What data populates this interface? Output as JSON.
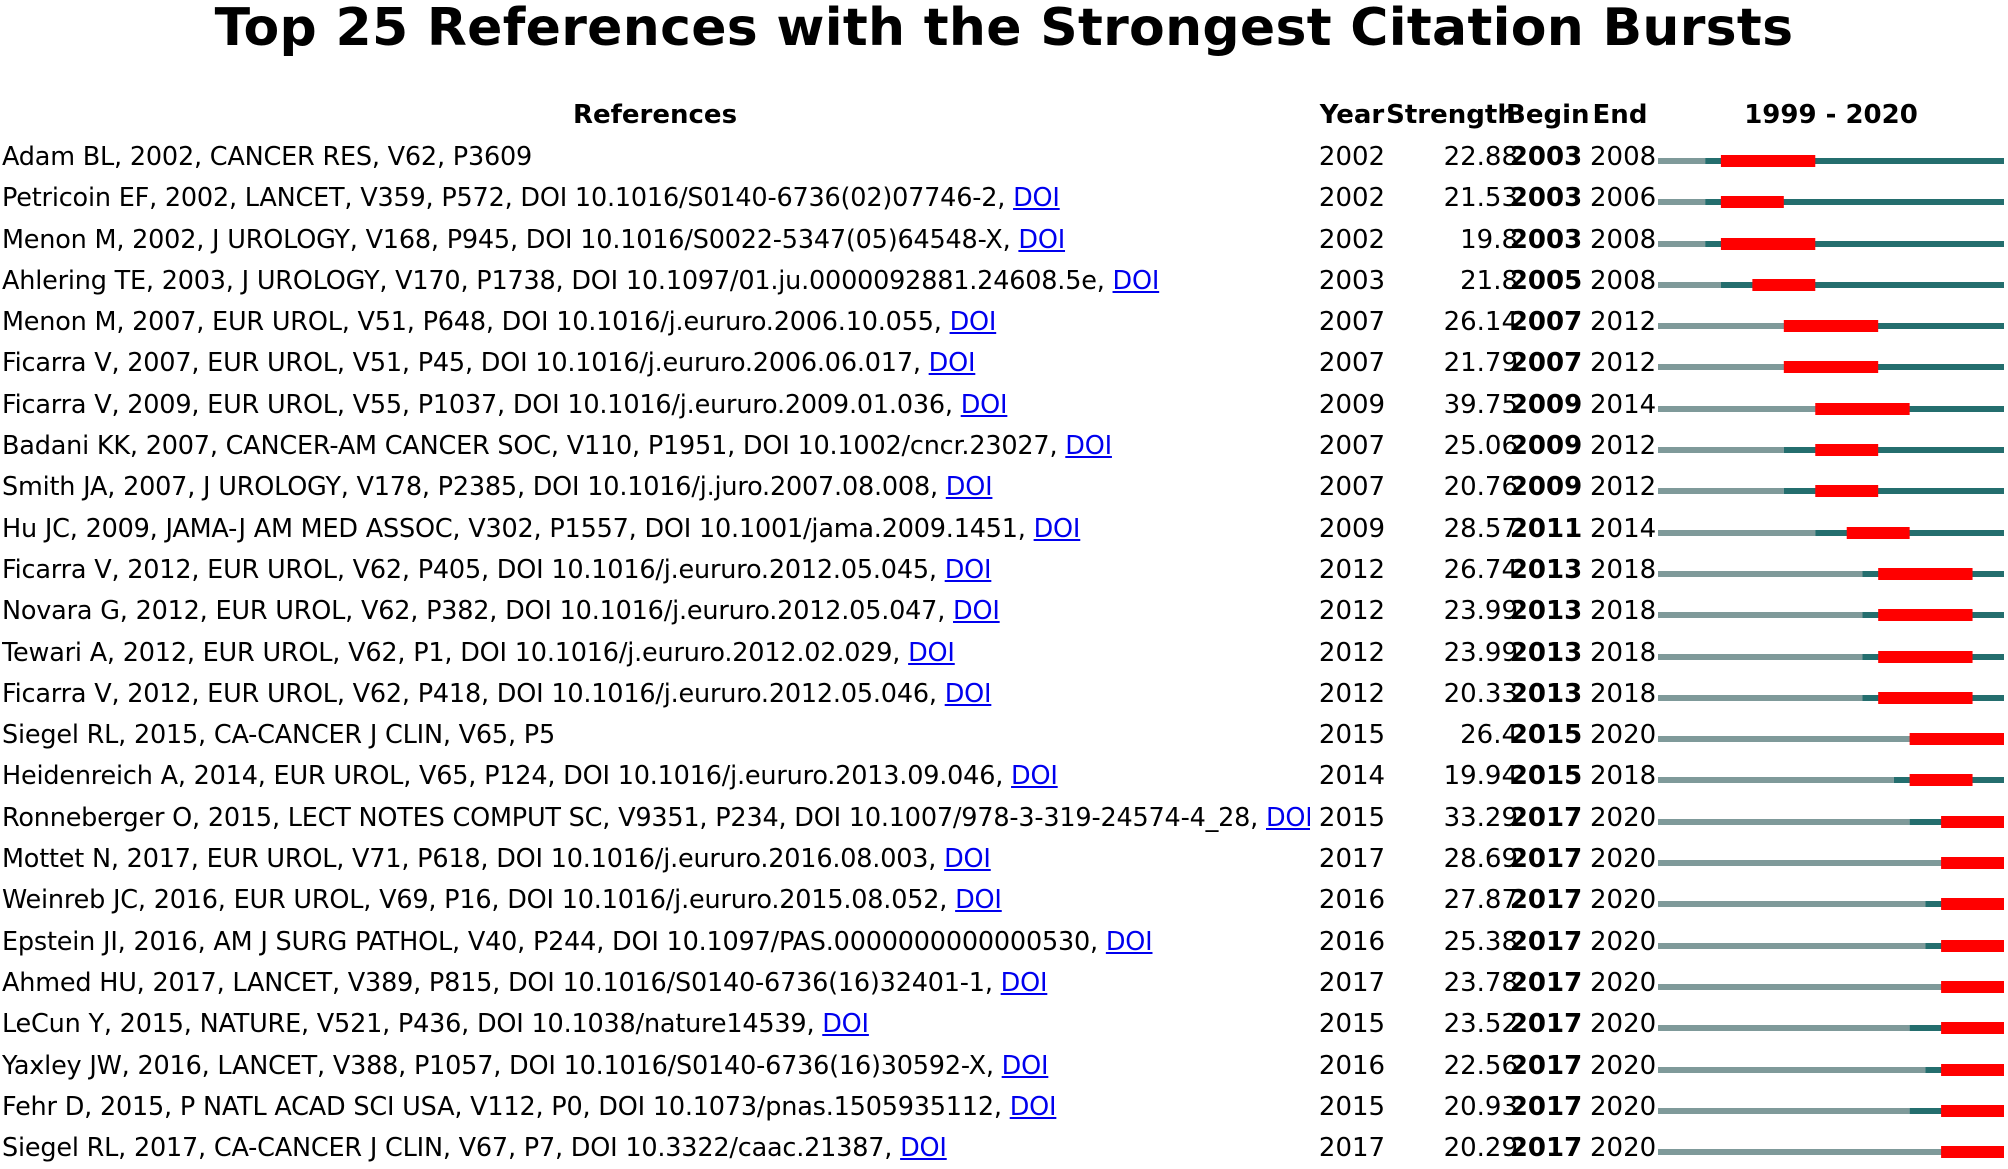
{
  "title": "Top 25 References with the Strongest Citation Bursts",
  "headers": {
    "references": "References",
    "year": "Year",
    "strength": "Strength",
    "begin": "Begin",
    "end": "End",
    "range": "1999 - 2020"
  },
  "doi_link_label": "DOI",
  "colors": {
    "pre_publication": "#7f9a9a",
    "active": "#246e6e",
    "burst": "#ff0000"
  },
  "chart_data": {
    "type": "table",
    "title": "Top 25 References with the Strongest Citation Bursts",
    "timeline_start": 1999,
    "timeline_end": 2020,
    "columns": [
      "References",
      "Year",
      "Strength",
      "Begin",
      "End",
      "1999 - 2020"
    ],
    "rows": [
      {
        "reference": "Adam BL, 2002, CANCER RES, V62, P3609",
        "doi": false,
        "year": "2002",
        "strength": "22.88",
        "begin": "2003",
        "end": "2008"
      },
      {
        "reference": "Petricoin EF, 2002, LANCET, V359, P572, DOI 10.1016/S0140-6736(02)07746-2,",
        "doi": true,
        "year": "2002",
        "strength": "21.53",
        "begin": "2003",
        "end": "2006"
      },
      {
        "reference": "Menon M, 2002, J UROLOGY, V168, P945, DOI 10.1016/S0022-5347(05)64548-X,",
        "doi": true,
        "year": "2002",
        "strength": "19.8",
        "begin": "2003",
        "end": "2008"
      },
      {
        "reference": "Ahlering TE, 2003, J UROLOGY, V170, P1738, DOI 10.1097/01.ju.0000092881.24608.5e,",
        "doi": true,
        "year": "2003",
        "strength": "21.8",
        "begin": "2005",
        "end": "2008"
      },
      {
        "reference": "Menon M, 2007, EUR UROL, V51, P648, DOI 10.1016/j.eururo.2006.10.055,",
        "doi": true,
        "year": "2007",
        "strength": "26.14",
        "begin": "2007",
        "end": "2012"
      },
      {
        "reference": "Ficarra V, 2007, EUR UROL, V51, P45, DOI 10.1016/j.eururo.2006.06.017,",
        "doi": true,
        "year": "2007",
        "strength": "21.79",
        "begin": "2007",
        "end": "2012"
      },
      {
        "reference": "Ficarra V, 2009, EUR UROL, V55, P1037, DOI 10.1016/j.eururo.2009.01.036,",
        "doi": true,
        "year": "2009",
        "strength": "39.75",
        "begin": "2009",
        "end": "2014"
      },
      {
        "reference": "Badani KK, 2007, CANCER-AM CANCER SOC, V110, P1951, DOI 10.1002/cncr.23027,",
        "doi": true,
        "year": "2007",
        "strength": "25.06",
        "begin": "2009",
        "end": "2012"
      },
      {
        "reference": "Smith JA, 2007, J UROLOGY, V178, P2385, DOI 10.1016/j.juro.2007.08.008,",
        "doi": true,
        "year": "2007",
        "strength": "20.76",
        "begin": "2009",
        "end": "2012"
      },
      {
        "reference": "Hu JC, 2009, JAMA-J AM MED ASSOC, V302, P1557, DOI 10.1001/jama.2009.1451,",
        "doi": true,
        "year": "2009",
        "strength": "28.57",
        "begin": "2011",
        "end": "2014"
      },
      {
        "reference": "Ficarra V, 2012, EUR UROL, V62, P405, DOI 10.1016/j.eururo.2012.05.045,",
        "doi": true,
        "year": "2012",
        "strength": "26.74",
        "begin": "2013",
        "end": "2018"
      },
      {
        "reference": "Novara G, 2012, EUR UROL, V62, P382, DOI 10.1016/j.eururo.2012.05.047,",
        "doi": true,
        "year": "2012",
        "strength": "23.99",
        "begin": "2013",
        "end": "2018"
      },
      {
        "reference": "Tewari A, 2012, EUR UROL, V62, P1, DOI 10.1016/j.eururo.2012.02.029,",
        "doi": true,
        "year": "2012",
        "strength": "23.99",
        "begin": "2013",
        "end": "2018"
      },
      {
        "reference": "Ficarra V, 2012, EUR UROL, V62, P418, DOI 10.1016/j.eururo.2012.05.046,",
        "doi": true,
        "year": "2012",
        "strength": "20.33",
        "begin": "2013",
        "end": "2018"
      },
      {
        "reference": "Siegel RL, 2015, CA-CANCER J CLIN, V65, P5",
        "doi": false,
        "year": "2015",
        "strength": "26.4",
        "begin": "2015",
        "end": "2020"
      },
      {
        "reference": "Heidenreich A, 2014, EUR UROL, V65, P124, DOI 10.1016/j.eururo.2013.09.046,",
        "doi": true,
        "year": "2014",
        "strength": "19.94",
        "begin": "2015",
        "end": "2018"
      },
      {
        "reference": "Ronneberger O, 2015, LECT NOTES COMPUT SC, V9351, P234, DOI 10.1007/978-3-319-24574-4_28,",
        "doi": true,
        "year": "2015",
        "strength": "33.29",
        "begin": "2017",
        "end": "2020"
      },
      {
        "reference": "Mottet N, 2017, EUR UROL, V71, P618, DOI 10.1016/j.eururo.2016.08.003,",
        "doi": true,
        "year": "2017",
        "strength": "28.69",
        "begin": "2017",
        "end": "2020"
      },
      {
        "reference": "Weinreb JC, 2016, EUR UROL, V69, P16, DOI 10.1016/j.eururo.2015.08.052,",
        "doi": true,
        "year": "2016",
        "strength": "27.87",
        "begin": "2017",
        "end": "2020"
      },
      {
        "reference": "Epstein JI, 2016, AM J SURG PATHOL, V40, P244, DOI 10.1097/PAS.0000000000000530,",
        "doi": true,
        "year": "2016",
        "strength": "25.38",
        "begin": "2017",
        "end": "2020"
      },
      {
        "reference": "Ahmed HU, 2017, LANCET, V389, P815, DOI 10.1016/S0140-6736(16)32401-1,",
        "doi": true,
        "year": "2017",
        "strength": "23.78",
        "begin": "2017",
        "end": "2020"
      },
      {
        "reference": "LeCun Y, 2015, NATURE, V521, P436, DOI 10.1038/nature14539,",
        "doi": true,
        "year": "2015",
        "strength": "23.52",
        "begin": "2017",
        "end": "2020"
      },
      {
        "reference": "Yaxley JW, 2016, LANCET, V388, P1057, DOI 10.1016/S0140-6736(16)30592-X,",
        "doi": true,
        "year": "2016",
        "strength": "22.56",
        "begin": "2017",
        "end": "2020"
      },
      {
        "reference": "Fehr D, 2015, P NATL ACAD SCI USA, V112, P0, DOI 10.1073/pnas.1505935112,",
        "doi": true,
        "year": "2015",
        "strength": "20.93",
        "begin": "2017",
        "end": "2020"
      },
      {
        "reference": "Siegel RL, 2017, CA-CANCER J CLIN, V67, P7, DOI 10.3322/caac.21387,",
        "doi": true,
        "year": "2017",
        "strength": "20.29",
        "begin": "2017",
        "end": "2020"
      }
    ]
  }
}
